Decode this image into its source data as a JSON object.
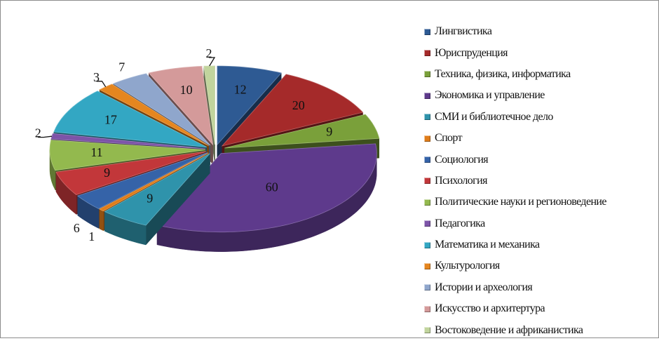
{
  "chart_data": {
    "type": "pie",
    "title": "",
    "categories": [
      "Лингвистика",
      "Юриспруденция",
      "Техника, физика, информатика",
      "Экономика и управление",
      "Социология",
      "Психология",
      "Политические науки и регионоведение",
      "Педагогика",
      "Математика и механика",
      "Культурология",
      "СМИ и библиотечное дело",
      "Спорт",
      "Истории и археология",
      "Искусство и архитертура",
      "Востоковедение и африканистика"
    ],
    "values": [
      12,
      20,
      9,
      60,
      9,
      1,
      6,
      9,
      11,
      2,
      17,
      3,
      7,
      10,
      2
    ],
    "colors": [
      "#2e5a93",
      "#a52a2a",
      "#7aa03a",
      "#5e3a8c",
      "#2f93ab",
      "#e07d1a",
      "#3563a8",
      "#c2373a",
      "#93b94e",
      "#7d54a8",
      "#33a7c3",
      "#e5861f",
      "#8fa6cc",
      "#d49a9a",
      "#c1d49d"
    ],
    "legend": [
      {
        "label": "Лингвистика",
        "color": "#2e5a93"
      },
      {
        "label": "Юриспруденция",
        "color": "#a52a2a"
      },
      {
        "label": "Техника, физика, информатика",
        "color": "#7aa03a"
      },
      {
        "label": "Экономика и управление",
        "color": "#5e3a8c"
      },
      {
        "label": "СМИ и библиотечное дело",
        "color": "#2f93ab"
      },
      {
        "label": "Спорт",
        "color": "#e07d1a"
      },
      {
        "label": "Социология",
        "color": "#3563a8"
      },
      {
        "label": "Психология",
        "color": "#c2373a"
      },
      {
        "label": "Политические науки и регионоведение",
        "color": "#93b94e"
      },
      {
        "label": "Педагогика",
        "color": "#7d54a8"
      },
      {
        "label": "Математика и механика",
        "color": "#33a7c3"
      },
      {
        "label": "Культурология",
        "color": "#e5861f"
      },
      {
        "label": "Истории и археология",
        "color": "#8fa6cc"
      },
      {
        "label": "Искусство и архитертура",
        "color": "#d49a9a"
      },
      {
        "label": "Востоковедение и африканистика",
        "color": "#c1d49d"
      }
    ],
    "legend_position": "right",
    "style": "3d-exploded"
  }
}
